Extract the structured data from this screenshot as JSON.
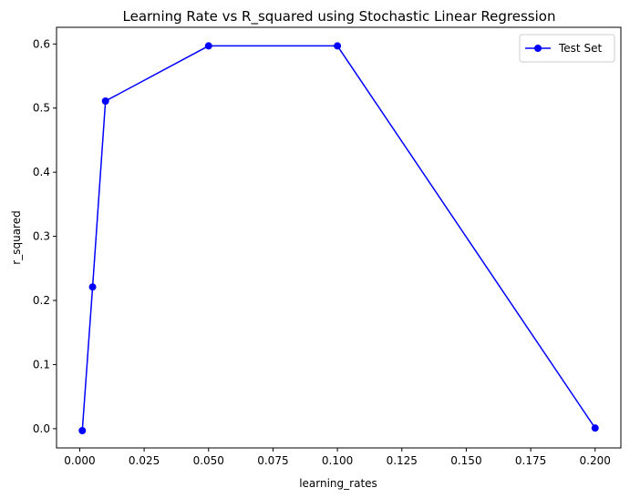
{
  "chart_data": {
    "type": "line",
    "title": "Learning Rate vs R_squared using Stochastic Linear Regression",
    "xlabel": "learning_rates",
    "ylabel": "r_squared",
    "xlim": [
      -0.009,
      0.21
    ],
    "ylim": [
      -0.03,
      0.626
    ],
    "xticks": [
      0.0,
      0.025,
      0.05,
      0.075,
      0.1,
      0.125,
      0.15,
      0.175,
      0.2
    ],
    "xtick_labels": [
      "0.000",
      "0.025",
      "0.050",
      "0.075",
      "0.100",
      "0.125",
      "0.150",
      "0.175",
      "0.200"
    ],
    "yticks": [
      0.0,
      0.1,
      0.2,
      0.3,
      0.4,
      0.5,
      0.6
    ],
    "ytick_labels": [
      "0.0",
      "0.1",
      "0.2",
      "0.3",
      "0.4",
      "0.5",
      "0.6"
    ],
    "grid": false,
    "legend_position": "top-right",
    "series": [
      {
        "name": "Test Set",
        "color": "#0000ff",
        "marker": "circle",
        "x": [
          0.001,
          0.005,
          0.01,
          0.05,
          0.1,
          0.2
        ],
        "y": [
          -0.003,
          0.221,
          0.511,
          0.597,
          0.597,
          0.001
        ]
      }
    ]
  }
}
